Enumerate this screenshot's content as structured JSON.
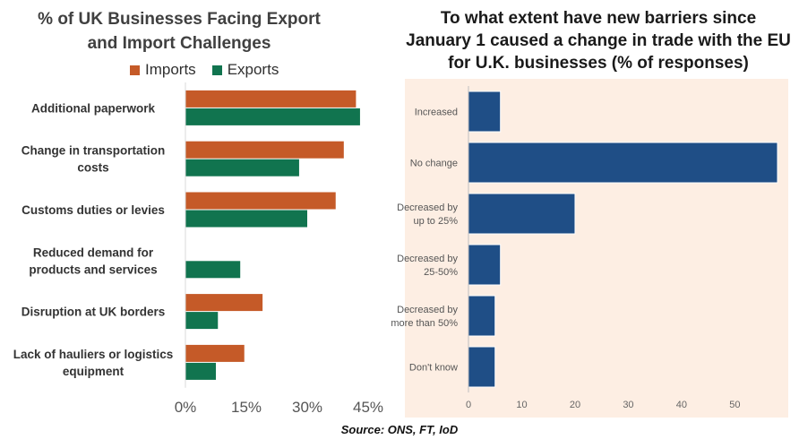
{
  "left_chart": {
    "title": "% of UK Businesses Facing Export\nand Import Challenges",
    "colors": {
      "imports": "#c55a28",
      "exports": "#11744f"
    },
    "tick_labels": [
      "0%",
      "15%",
      "30%",
      "45%"
    ]
  },
  "right_chart": {
    "title": "To what extent have new barriers since\nJanuary 1 caused a change in trade with the EU\nfor U.K. businesses (% of responses)",
    "colors": {
      "bar": "#1f4e86",
      "background": "#fdeee3"
    },
    "tick_labels": [
      "0",
      "10",
      "20",
      "30",
      "40",
      "50"
    ]
  },
  "source": "Source: ONS, FT, IoD",
  "chart_data": [
    {
      "type": "bar",
      "orientation": "horizontal",
      "title": "% of UK Businesses Facing Export\nand Import Challenges",
      "categories": [
        [
          "Additional paperwork"
        ],
        [
          "Change in transportation",
          "costs"
        ],
        [
          "Customs duties or levies"
        ],
        [
          "Reduced demand for",
          "products and services"
        ],
        [
          "Disruption at UK borders"
        ],
        [
          "Lack of hauliers or logistics",
          "equipment"
        ]
      ],
      "series": [
        {
          "name": "Imports",
          "values": [
            42,
            39,
            37,
            null,
            19,
            14.5
          ]
        },
        {
          "name": "Exports",
          "values": [
            43,
            28,
            30,
            13.5,
            8,
            7.5
          ]
        }
      ],
      "xlim": [
        0,
        45
      ],
      "xticks": [
        0,
        15,
        30,
        45
      ],
      "legend": "top",
      "grid": false
    },
    {
      "type": "bar",
      "orientation": "horizontal",
      "title": "To what extent have new barriers since\nJanuary 1 caused a change in trade with the EU\nfor U.K. businesses (% of responses)",
      "categories": [
        [
          "Increased"
        ],
        [
          "No change"
        ],
        [
          "Decreased by",
          "up to 25%"
        ],
        [
          "Decreased by",
          "25-50%"
        ],
        [
          "Decreased by",
          "more than 50%"
        ],
        [
          "Don't know"
        ]
      ],
      "values": [
        6,
        58,
        20,
        6,
        5,
        5
      ],
      "xlim": [
        0,
        58
      ],
      "xticks": [
        0,
        10,
        20,
        30,
        40,
        50
      ],
      "grid": false
    }
  ]
}
